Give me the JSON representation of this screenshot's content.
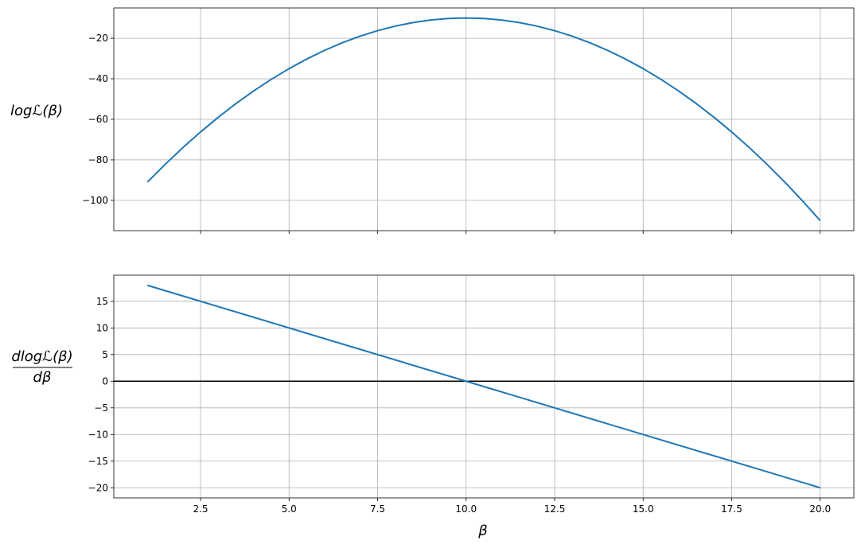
{
  "chart_data": [
    {
      "type": "line",
      "ylabel": "logℒ(β)",
      "xlim": [
        0.05,
        20.95
      ],
      "ylim": [
        -114.95,
        -5.05
      ],
      "xticks": [
        2.5,
        5.0,
        7.5,
        10.0,
        12.5,
        15.0,
        17.5,
        20.0
      ],
      "xtick_labels_visible": false,
      "yticks": [
        -20,
        -40,
        -60,
        -80,
        -100
      ],
      "ytick_labels": [
        "−20",
        "−40",
        "−60",
        "−80",
        "−100"
      ],
      "grid": true,
      "series": [
        {
          "color": "#1f77b4",
          "x": [
            1,
            1.5,
            2,
            2.5,
            3,
            3.5,
            4,
            4.5,
            5,
            5.5,
            6,
            6.5,
            7,
            7.5,
            8,
            8.5,
            9,
            9.5,
            10,
            10.5,
            11,
            11.5,
            12,
            12.5,
            13,
            13.5,
            14,
            14.5,
            15,
            15.5,
            16,
            16.5,
            17,
            17.5,
            18,
            18.5,
            19,
            19.5,
            20
          ],
          "y": [
            -91,
            -82.25,
            -74,
            -66.25,
            -59,
            -52.25,
            -46,
            -40.25,
            -35,
            -30.25,
            -26,
            -22.25,
            -19,
            -16.25,
            -14,
            -12.25,
            -11,
            -10.25,
            -10,
            -10.25,
            -11,
            -12.25,
            -14,
            -16.25,
            -19,
            -22.25,
            -26,
            -30.25,
            -35,
            -40.25,
            -46,
            -52.25,
            -59,
            -66.25,
            -74,
            -82.25,
            -91,
            -100.25,
            -110
          ]
        }
      ]
    },
    {
      "type": "line",
      "ylabel_numerator": "dlogℒ(β)",
      "ylabel_denominator": "dβ",
      "xlabel": "β",
      "xlim": [
        0.05,
        20.95
      ],
      "ylim": [
        -21.9,
        19.9
      ],
      "xticks": [
        2.5,
        5.0,
        7.5,
        10.0,
        12.5,
        15.0,
        17.5,
        20.0
      ],
      "xtick_labels": [
        "2.5",
        "5.0",
        "7.5",
        "10.0",
        "12.5",
        "15.0",
        "17.5",
        "20.0"
      ],
      "yticks": [
        15,
        10,
        5,
        0,
        -5,
        -10,
        -15,
        -20
      ],
      "ytick_labels": [
        "15",
        "10",
        "5",
        "0",
        "−5",
        "−10",
        "−15",
        "−20"
      ],
      "grid": true,
      "hline": {
        "y": 0,
        "color": "#000000"
      },
      "series": [
        {
          "color": "#1f77b4",
          "x": [
            1,
            20
          ],
          "y": [
            18,
            -20
          ]
        }
      ]
    }
  ]
}
